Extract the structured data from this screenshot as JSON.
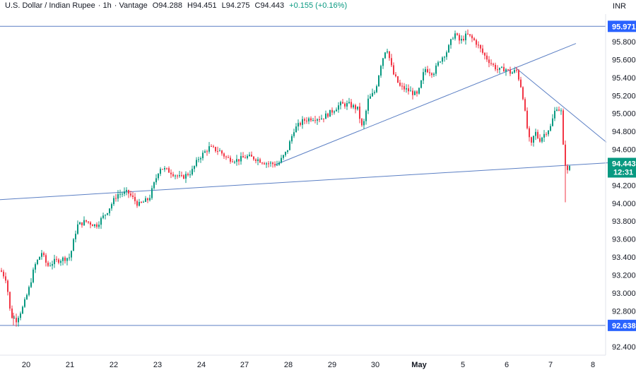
{
  "header": {
    "symbol": "U.S. Dollar / Indian Rupee",
    "interval": "1h",
    "source": "Vantage",
    "open": "O94.288",
    "high": "H94.451",
    "low": "L94.275",
    "close": "C94.443",
    "change": "+0.155 (+0.16%)"
  },
  "currency": "INR",
  "colors": {
    "up": "#089981",
    "down": "#f23645",
    "trendline": "#5b7fc4",
    "level_tag": "#2962ff",
    "last_price_tag": "#089981"
  },
  "chart_data": {
    "type": "candlestick",
    "y_ticks": [
      "95.800",
      "95.600",
      "95.400",
      "95.200",
      "95.000",
      "94.800",
      "94.600",
      "94.200",
      "94.000",
      "93.800",
      "93.600",
      "93.400",
      "93.200",
      "93.000",
      "92.800",
      "92.400"
    ],
    "y_tick_values": [
      95.8,
      95.6,
      95.4,
      95.2,
      95.0,
      94.8,
      94.6,
      94.2,
      94.0,
      93.8,
      93.6,
      93.4,
      93.2,
      93.0,
      92.8,
      92.4
    ],
    "ylim": [
      92.33,
      96.06
    ],
    "x_ticks": [
      "20",
      "21",
      "22",
      "23",
      "24",
      "27",
      "28",
      "29",
      "30",
      "May",
      "5",
      "6",
      "7",
      "8"
    ],
    "levels": [
      {
        "label": "95.971",
        "value": 95.971
      },
      {
        "label": "92.638",
        "value": 92.638
      }
    ],
    "last_price": {
      "label": "94.443",
      "countdown": "12:31",
      "value": 94.443
    },
    "trendlines": [
      {
        "from": [
          0,
          94.04
        ],
        "to": [
          860,
          94.45
        ]
      },
      {
        "from": [
          390,
          94.43
        ],
        "to": [
          815,
          95.78
        ]
      },
      {
        "from": [
          728,
          95.52
        ],
        "to": [
          858,
          94.68
        ]
      }
    ],
    "anchors": [
      [
        0,
        93.25
      ],
      [
        8,
        93.15
      ],
      [
        14,
        92.75
      ],
      [
        22,
        92.7
      ],
      [
        32,
        92.85
      ],
      [
        40,
        93.05
      ],
      [
        48,
        93.3
      ],
      [
        58,
        93.45
      ],
      [
        66,
        93.3
      ],
      [
        76,
        93.35
      ],
      [
        88,
        93.38
      ],
      [
        98,
        93.4
      ],
      [
        108,
        93.75
      ],
      [
        120,
        93.8
      ],
      [
        135,
        93.75
      ],
      [
        150,
        93.9
      ],
      [
        165,
        94.1
      ],
      [
        180,
        94.12
      ],
      [
        195,
        93.98
      ],
      [
        210,
        94.05
      ],
      [
        225,
        94.4
      ],
      [
        240,
        94.35
      ],
      [
        255,
        94.28
      ],
      [
        270,
        94.35
      ],
      [
        280,
        94.5
      ],
      [
        295,
        94.62
      ],
      [
        310,
        94.58
      ],
      [
        320,
        94.5
      ],
      [
        335,
        94.48
      ],
      [
        348,
        94.52
      ],
      [
        360,
        94.5
      ],
      [
        375,
        94.45
      ],
      [
        392,
        94.43
      ],
      [
        405,
        94.58
      ],
      [
        415,
        94.82
      ],
      [
        428,
        94.92
      ],
      [
        440,
        94.95
      ],
      [
        455,
        94.95
      ],
      [
        468,
        95.02
      ],
      [
        480,
        95.1
      ],
      [
        493,
        95.1
      ],
      [
        505,
        95.05
      ],
      [
        512,
        94.82
      ],
      [
        520,
        95.15
      ],
      [
        530,
        95.25
      ],
      [
        538,
        95.55
      ],
      [
        546,
        95.75
      ],
      [
        555,
        95.45
      ],
      [
        565,
        95.3
      ],
      [
        578,
        95.25
      ],
      [
        590,
        95.2
      ],
      [
        600,
        95.5
      ],
      [
        612,
        95.45
      ],
      [
        622,
        95.6
      ],
      [
        632,
        95.7
      ],
      [
        642,
        95.9
      ],
      [
        650,
        95.8
      ],
      [
        660,
        95.88
      ],
      [
        672,
        95.8
      ],
      [
        684,
        95.65
      ],
      [
        695,
        95.55
      ],
      [
        704,
        95.48
      ],
      [
        714,
        95.5
      ],
      [
        722,
        95.45
      ],
      [
        730,
        95.48
      ],
      [
        738,
        95.25
      ],
      [
        744,
        94.88
      ],
      [
        750,
        94.62
      ],
      [
        756,
        94.8
      ],
      [
        762,
        94.7
      ],
      [
        770,
        94.78
      ],
      [
        778,
        94.85
      ],
      [
        786,
        95.08
      ],
      [
        793,
        95.02
      ],
      [
        797,
        94.5
      ],
      [
        802,
        94.35
      ],
      [
        806,
        94.44
      ]
    ]
  }
}
